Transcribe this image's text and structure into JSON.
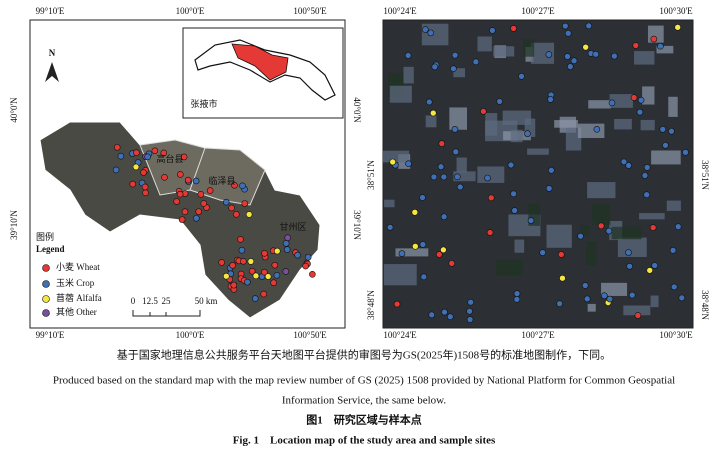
{
  "left_map": {
    "top_ticks": [
      "99°10'E",
      "100°0'E",
      "100°50'E"
    ],
    "bottom_ticks": [
      "99°10'E",
      "100°0'E",
      "100°50'E"
    ],
    "left_ticks": [
      "40°0'N",
      "39°10'N"
    ],
    "right_ticks": [
      "40°0'N",
      "39°10'N"
    ],
    "north": "N",
    "inset_label": "张掖市",
    "county_labels": [
      "高台县",
      "临泽县",
      "甘州区"
    ],
    "legend": {
      "title_cn": "图例",
      "title_en": "Legend",
      "items": [
        {
          "label": "小麦 Wheat",
          "color": "#e53935"
        },
        {
          "label": "玉米 Crop",
          "color": "#3f6fb5"
        },
        {
          "label": "苜蓿 Alfalfa",
          "color": "#f5e642"
        },
        {
          "label": "其他 Other",
          "color": "#7b4fa0"
        }
      ]
    },
    "scale": [
      "0",
      "12.5",
      "25",
      "50 km"
    ]
  },
  "right_map": {
    "top_ticks": [
      "100°24'E",
      "100°27'E",
      "100°30'E"
    ],
    "bottom_ticks": [
      "100°24'E",
      "100°27'E",
      "100°30'E"
    ],
    "left_ticks": [
      "38°51'N",
      "38°48'N"
    ],
    "right_ticks": [
      "38°51'N",
      "38°48'N"
    ]
  },
  "caption": {
    "note_cn": "基于国家地理信息公共服务平台天地图平台提供的审图号为GS(2025年)1508号的标准地图制作，下同。",
    "note_en_1": "Produced based on the standard map with the map review number of GS (2025) 1508 provided by National Platform for Common Geospatial",
    "note_en_2": "Information Service, the same below.",
    "title_cn": "图1　研究区域与样本点",
    "title_en": "Fig. 1　Location map of the study area and sample sites"
  }
}
